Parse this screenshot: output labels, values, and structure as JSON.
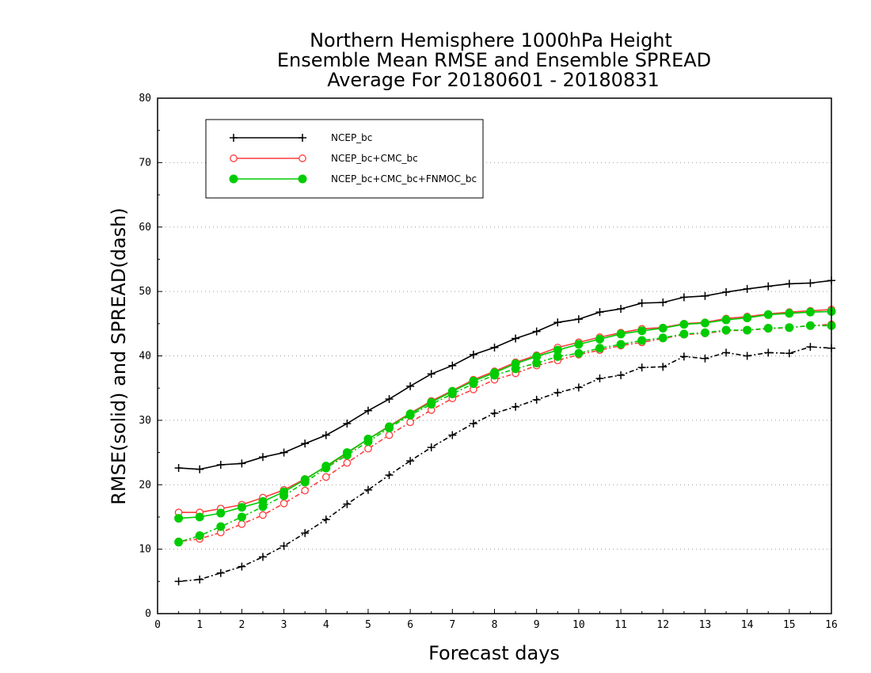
{
  "chart_data": {
    "type": "line",
    "title": [
      "Northern Hemisphere 1000hPa Height",
      "Ensemble Mean RMSE and Ensemble SPREAD",
      "Average For 20180601 - 20180831"
    ],
    "xlabel": "Forecast days",
    "ylabel": "RMSE(solid) and SPREAD(dash)",
    "xlim": [
      0,
      16
    ],
    "ylim": [
      0,
      80
    ],
    "xticks": [
      0,
      1,
      2,
      3,
      4,
      5,
      6,
      7,
      8,
      9,
      10,
      11,
      12,
      13,
      14,
      15,
      16
    ],
    "yticks": [
      0,
      10,
      20,
      30,
      40,
      50,
      60,
      70,
      80
    ],
    "grid": "horizontal dotted",
    "legend_position": "top-left",
    "x": [
      0.5,
      1,
      1.5,
      2,
      2.5,
      3,
      3.5,
      4,
      4.5,
      5,
      5.5,
      6,
      6.5,
      7,
      7.5,
      8,
      8.5,
      9,
      9.5,
      10,
      10.5,
      11,
      11.5,
      12,
      12.5,
      13,
      13.5,
      14,
      14.5,
      15,
      15.5,
      16
    ],
    "series": [
      {
        "name": "NCEP_bc",
        "color": "#000000",
        "marker": "plus",
        "rmse": [
          22.6,
          22.4,
          23.1,
          23.3,
          24.3,
          25.0,
          26.4,
          27.7,
          29.5,
          31.5,
          33.3,
          35.3,
          37.2,
          38.5,
          40.2,
          41.3,
          42.7,
          43.8,
          45.2,
          45.7,
          46.8,
          47.3,
          48.2,
          48.3,
          49.1,
          49.3,
          49.9,
          50.4,
          50.8,
          51.2,
          51.3,
          51.7
        ],
        "spread": [
          5.0,
          5.3,
          6.3,
          7.3,
          8.8,
          10.5,
          12.5,
          14.6,
          17.0,
          19.2,
          21.5,
          23.7,
          25.8,
          27.7,
          29.5,
          31.1,
          32.1,
          33.2,
          34.3,
          35.1,
          36.5,
          37.0,
          38.2,
          38.3,
          39.9,
          39.6,
          40.5,
          40.0,
          40.5,
          40.4,
          41.4,
          41.2
        ]
      },
      {
        "name": "NCEP_bc+CMC_bc",
        "color": "#ff3c3c",
        "marker": "open-circle",
        "rmse": [
          15.7,
          15.7,
          16.3,
          16.9,
          18.0,
          19.2,
          20.9,
          22.8,
          24.9,
          27.1,
          29.1,
          31.1,
          33.0,
          34.6,
          36.3,
          37.6,
          39.0,
          40.1,
          41.3,
          42.1,
          42.9,
          43.6,
          44.2,
          44.4,
          45.0,
          45.2,
          45.8,
          46.1,
          46.5,
          46.8,
          47.0,
          47.2
        ],
        "spread": [
          11.2,
          11.6,
          12.6,
          13.9,
          15.3,
          17.1,
          19.1,
          21.2,
          23.4,
          25.6,
          27.7,
          29.7,
          31.6,
          33.4,
          34.8,
          36.3,
          37.3,
          38.5,
          39.3,
          40.2,
          40.9,
          41.6,
          42.1,
          42.7,
          43.3,
          43.5,
          43.9,
          44.0,
          44.2,
          44.4,
          44.7,
          44.9
        ]
      },
      {
        "name": "NCEP_bc+CMC_bc+FNMOC_bc",
        "color": "#00cc00",
        "marker": "filled-circle",
        "rmse": [
          14.8,
          15.0,
          15.6,
          16.5,
          17.4,
          18.9,
          20.8,
          22.9,
          25.0,
          27.1,
          29.0,
          31.0,
          32.8,
          34.5,
          36.1,
          37.4,
          38.8,
          39.9,
          40.9,
          41.8,
          42.6,
          43.4,
          43.9,
          44.3,
          44.9,
          45.1,
          45.6,
          45.9,
          46.4,
          46.6,
          46.8,
          46.9
        ],
        "spread": [
          11.1,
          12.1,
          13.5,
          15.0,
          16.6,
          18.3,
          20.4,
          22.6,
          24.6,
          26.7,
          28.8,
          30.8,
          32.5,
          34.1,
          35.7,
          37.0,
          38.0,
          38.9,
          39.9,
          40.4,
          41.2,
          41.8,
          42.4,
          42.8,
          43.4,
          43.6,
          44.0,
          44.0,
          44.3,
          44.4,
          44.7,
          44.7
        ]
      }
    ]
  }
}
